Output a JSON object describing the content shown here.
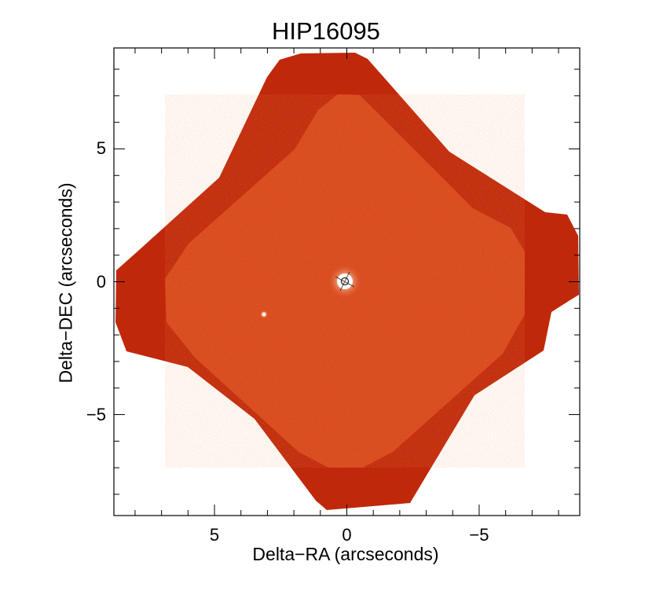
{
  "figure": {
    "title": "HIP16095",
    "xlabel": "Delta−RA (arcseconds)",
    "ylabel": "Delta−DEC (arcseconds)",
    "x_ticks": [
      "5",
      "0",
      "−5"
    ],
    "y_ticks": [
      "5",
      "0",
      "−5"
    ],
    "x_range_arcsec": [
      8.8,
      -8.8
    ],
    "y_range_arcsec": [
      -8.8,
      8.8
    ],
    "colormap": "red-orange",
    "colors": {
      "outer_field": "#c0280a",
      "inner_field": "#d8471c",
      "star_core": "#ffffff",
      "frame": "#000000"
    }
  }
}
